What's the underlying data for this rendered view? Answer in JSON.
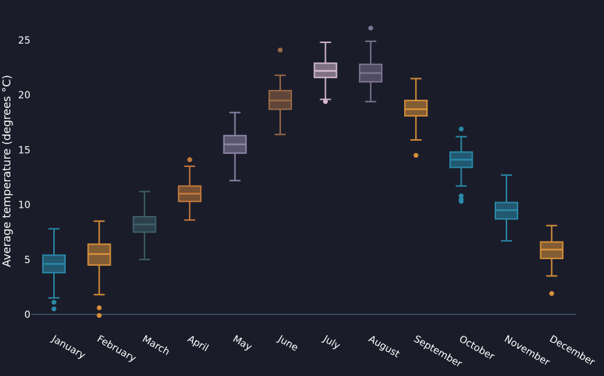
{
  "chart_data": {
    "type": "box",
    "ylabel": "Average temperature (degrees °C)",
    "xlabel": "",
    "ylim": [
      -1.6,
      27.5
    ],
    "yticks": [
      0,
      5,
      10,
      15,
      20,
      25
    ],
    "grid": false,
    "zero_line": true,
    "categories": [
      "January",
      "February",
      "March",
      "April",
      "May",
      "June",
      "July",
      "August",
      "September",
      "October",
      "November",
      "December"
    ],
    "series": [
      {
        "category": "January",
        "color": "#2a8aa9",
        "min": 1.5,
        "q1": 3.8,
        "median": 4.6,
        "q3": 5.4,
        "max": 7.8,
        "outliers": [
          1.1,
          0.5
        ]
      },
      {
        "category": "February",
        "color": "#d9913a",
        "min": 1.8,
        "q1": 4.5,
        "median": 5.5,
        "q3": 6.4,
        "max": 8.5,
        "outliers": [
          0.6,
          -0.1
        ]
      },
      {
        "category": "March",
        "color": "#3e6068",
        "min": 5.0,
        "q1": 7.5,
        "median": 8.2,
        "q3": 8.9,
        "max": 11.2,
        "outliers": []
      },
      {
        "category": "April",
        "color": "#c47a3a",
        "min": 8.6,
        "q1": 10.3,
        "median": 11.0,
        "q3": 11.7,
        "max": 13.5,
        "outliers": [
          14.1
        ]
      },
      {
        "category": "May",
        "color": "#8f86a8",
        "min": 12.2,
        "q1": 14.7,
        "median": 15.5,
        "q3": 16.3,
        "max": 18.4,
        "outliers": []
      },
      {
        "category": "June",
        "color": "#9a6a45",
        "min": 16.4,
        "q1": 18.7,
        "median": 19.5,
        "q3": 20.4,
        "max": 21.8,
        "outliers": [
          24.1
        ]
      },
      {
        "category": "July",
        "color": "#d4b8cc",
        "min": 19.6,
        "q1": 21.6,
        "median": 22.2,
        "q3": 22.9,
        "max": 24.8,
        "outliers": [
          19.4
        ]
      },
      {
        "category": "August",
        "color": "#7d7590",
        "min": 19.4,
        "q1": 21.2,
        "median": 22.0,
        "q3": 22.8,
        "max": 24.9,
        "outliers": [
          26.1
        ]
      },
      {
        "category": "September",
        "color": "#d9913a",
        "min": 15.9,
        "q1": 18.1,
        "median": 18.7,
        "q3": 19.5,
        "max": 21.5,
        "outliers": [
          14.5
        ]
      },
      {
        "category": "October",
        "color": "#2a8aa9",
        "min": 11.7,
        "q1": 13.4,
        "median": 14.1,
        "q3": 14.8,
        "max": 16.2,
        "outliers": [
          16.9,
          10.8,
          10.5,
          10.3
        ]
      },
      {
        "category": "November",
        "color": "#2a8aa9",
        "min": 6.7,
        "q1": 8.7,
        "median": 9.5,
        "q3": 10.2,
        "max": 12.7,
        "outliers": []
      },
      {
        "category": "December",
        "color": "#d9913a",
        "min": 3.5,
        "q1": 5.1,
        "median": 5.9,
        "q3": 6.6,
        "max": 8.1,
        "outliers": [
          1.9
        ]
      }
    ]
  }
}
